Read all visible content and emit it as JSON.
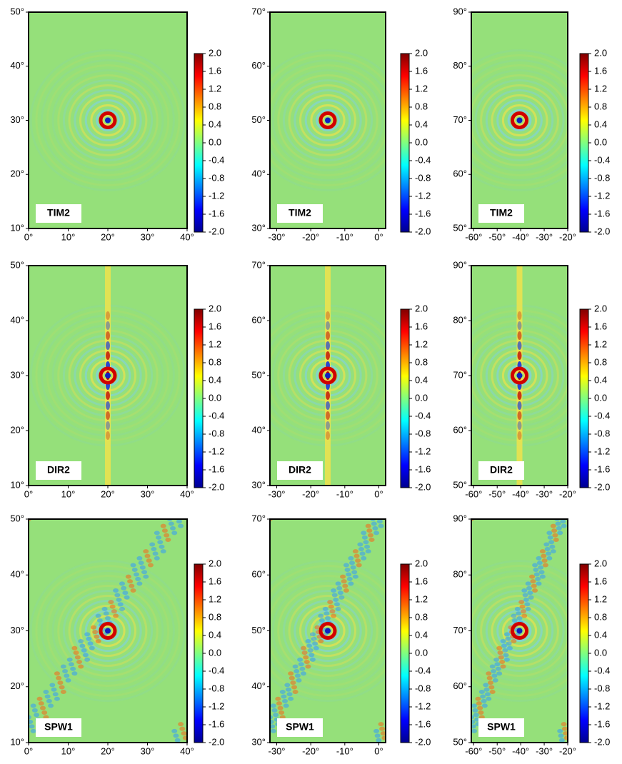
{
  "rows": [
    {
      "label": "TIM2"
    },
    {
      "label": "DIR2"
    },
    {
      "label": "SPW1"
    }
  ],
  "columns": [
    {
      "xlim": [
        0,
        40
      ],
      "ylim": [
        10,
        50
      ],
      "xticks": [
        {
          "value": 0,
          "label": "0°"
        },
        {
          "value": 10,
          "label": "10°"
        },
        {
          "value": 20,
          "label": "20°"
        },
        {
          "value": 30,
          "label": "30°"
        },
        {
          "value": 40,
          "label": "40°"
        }
      ],
      "yticks": [
        {
          "value": 10,
          "label": "10°"
        },
        {
          "value": 20,
          "label": "20°"
        },
        {
          "value": 30,
          "label": "30°"
        },
        {
          "value": 40,
          "label": "40°"
        },
        {
          "value": 50,
          "label": "50°"
        }
      ]
    },
    {
      "xlim": [
        -32,
        2
      ],
      "ylim": [
        30,
        70
      ],
      "xticks": [
        {
          "value": -30,
          "label": "-30°"
        },
        {
          "value": -20,
          "label": "-20°"
        },
        {
          "value": -10,
          "label": "-10°"
        },
        {
          "value": 0,
          "label": "0°"
        }
      ],
      "yticks": [
        {
          "value": 30,
          "label": "30°"
        },
        {
          "value": 40,
          "label": "40°"
        },
        {
          "value": 50,
          "label": "50°"
        },
        {
          "value": 60,
          "label": "60°"
        },
        {
          "value": 70,
          "label": "70°"
        }
      ]
    },
    {
      "xlim": [
        -61,
        -20
      ],
      "ylim": [
        50,
        90
      ],
      "xticks": [
        {
          "value": -60,
          "label": "-60°"
        },
        {
          "value": -50,
          "label": "-50°"
        },
        {
          "value": -40,
          "label": "-40°"
        },
        {
          "value": -30,
          "label": "-30°"
        },
        {
          "value": -20,
          "label": "-20°"
        }
      ],
      "yticks": [
        {
          "value": 50,
          "label": "50°"
        },
        {
          "value": 60,
          "label": "60°"
        },
        {
          "value": 70,
          "label": "70°"
        },
        {
          "value": 80,
          "label": "80°"
        },
        {
          "value": 90,
          "label": "90°"
        }
      ]
    }
  ],
  "colorbar": {
    "lim": [
      -2,
      2
    ],
    "ticks": [
      {
        "value": 2,
        "label": "2.0"
      },
      {
        "value": 1.6,
        "label": "1.6"
      },
      {
        "value": 1.2,
        "label": "1.2"
      },
      {
        "value": 0.8,
        "label": "0.8"
      },
      {
        "value": 0.4,
        "label": "0.4"
      },
      {
        "value": 0,
        "label": "0.0"
      },
      {
        "value": -0.4,
        "label": "-0.4"
      },
      {
        "value": -0.8,
        "label": "-0.8"
      },
      {
        "value": -1.2,
        "label": "-1.2"
      },
      {
        "value": -1.6,
        "label": "-1.6"
      },
      {
        "value": -2,
        "label": "-2.0"
      }
    ]
  }
}
